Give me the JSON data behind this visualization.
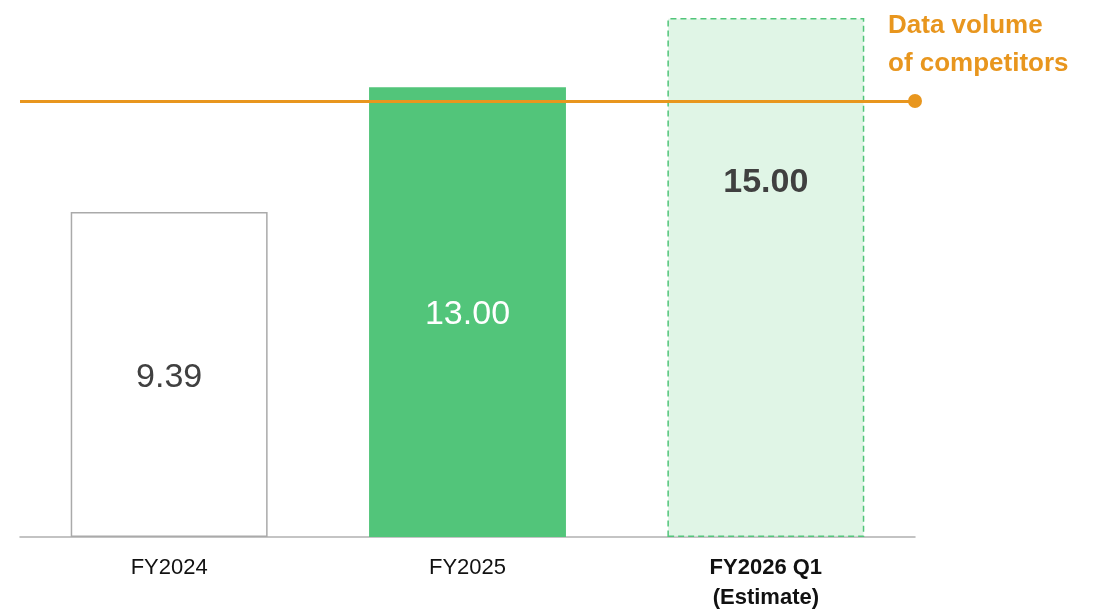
{
  "chart_data": {
    "type": "bar",
    "categories": [
      "FY2024",
      "FY2025",
      "FY2026 Q1\n(Estimate)"
    ],
    "values": [
      9.39,
      13.0,
      15.0
    ],
    "colors": [
      "#ffffff",
      "#52c57a",
      "#e0f5e6"
    ],
    "value_labels": [
      "9.39",
      "13.00",
      "15.00"
    ],
    "ref_lines": [
      {
        "axis": "y",
        "value": 12.6,
        "label": "Data volume\nof competitors",
        "color": "#e8961e"
      }
    ]
  }
}
